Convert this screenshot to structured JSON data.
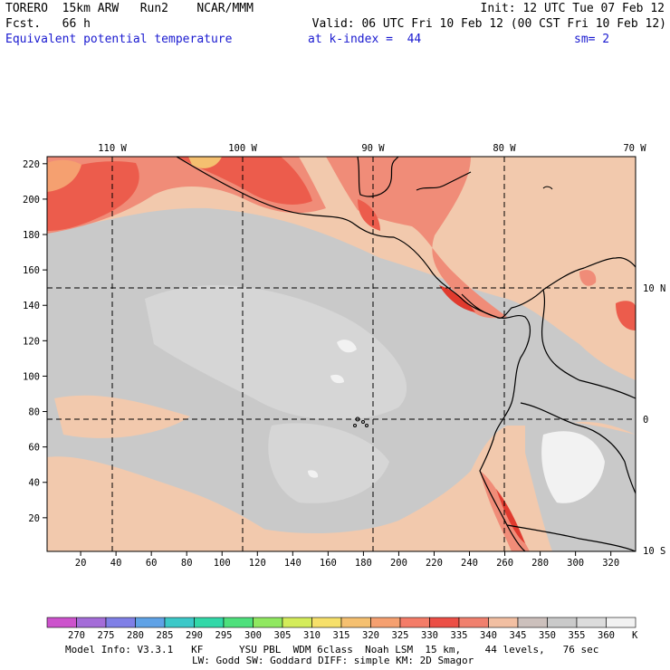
{
  "header": {
    "model": "TORERO  15km ARW   Run2    NCAR/MMM",
    "init": "Init: 12 UTC Tue 07 Feb 12",
    "fcst": "Fcst.   66 h",
    "valid": "Valid: 06 UTC Fri 10 Feb 12 (00 CST Fri 10 Feb 12)",
    "field": "Equivalent potential temperature",
    "level": "at k-index =  44",
    "smooth": "sm= 2"
  },
  "map": {
    "lon_labels": [
      "110 W",
      "100 W",
      "90 W",
      "80 W",
      "70 W"
    ],
    "lat_labels": [
      "10 N",
      "0",
      "10 S"
    ],
    "grid_x_ticks": [
      20,
      40,
      60,
      80,
      100,
      120,
      140,
      160,
      180,
      200,
      220,
      240,
      260,
      280,
      300,
      320
    ],
    "grid_y_ticks": [
      20,
      40,
      60,
      80,
      100,
      120,
      140,
      160,
      180,
      200,
      220
    ],
    "grid_range_x": [
      1,
      334
    ],
    "grid_range_y": [
      1,
      224
    ],
    "colors": {
      "ocean_main": "#c9c9c9",
      "ocean_warm": "#f2c9ad",
      "ocean_light": "#dcdcdc",
      "hot_1": "#f08c78",
      "hot_2": "#ec5c4c",
      "hot_3": "#e03a2e",
      "cool_white": "#f2f2f2"
    }
  },
  "colorbar": {
    "labels": [
      "270",
      "275",
      "280",
      "285",
      "290",
      "295",
      "300",
      "305",
      "310",
      "315",
      "320",
      "325",
      "330",
      "335",
      "340",
      "345",
      "350",
      "355",
      "360"
    ],
    "unit": "K",
    "colors": [
      "#cc52cc",
      "#a46cd8",
      "#7f7fe6",
      "#5fa2e6",
      "#3cc8c8",
      "#32d8a8",
      "#4ee07c",
      "#90e860",
      "#d4ec5a",
      "#f6e06a",
      "#f5c070",
      "#f5a070",
      "#f47c68",
      "#ec4f46",
      "#f0806e",
      "#f2bfa2",
      "#ccc0bc",
      "#cacaca",
      "#dcdcdc",
      "#f2f2f2"
    ]
  },
  "footer": {
    "line1": "Model Info: V3.3.1   KF      YSU PBL  WDM 6class  Noah LSM  15 km,    44 levels,   76 sec",
    "line2": "LW: Godd SW: Goddard DIFF: simple KM: 2D Smagor"
  }
}
